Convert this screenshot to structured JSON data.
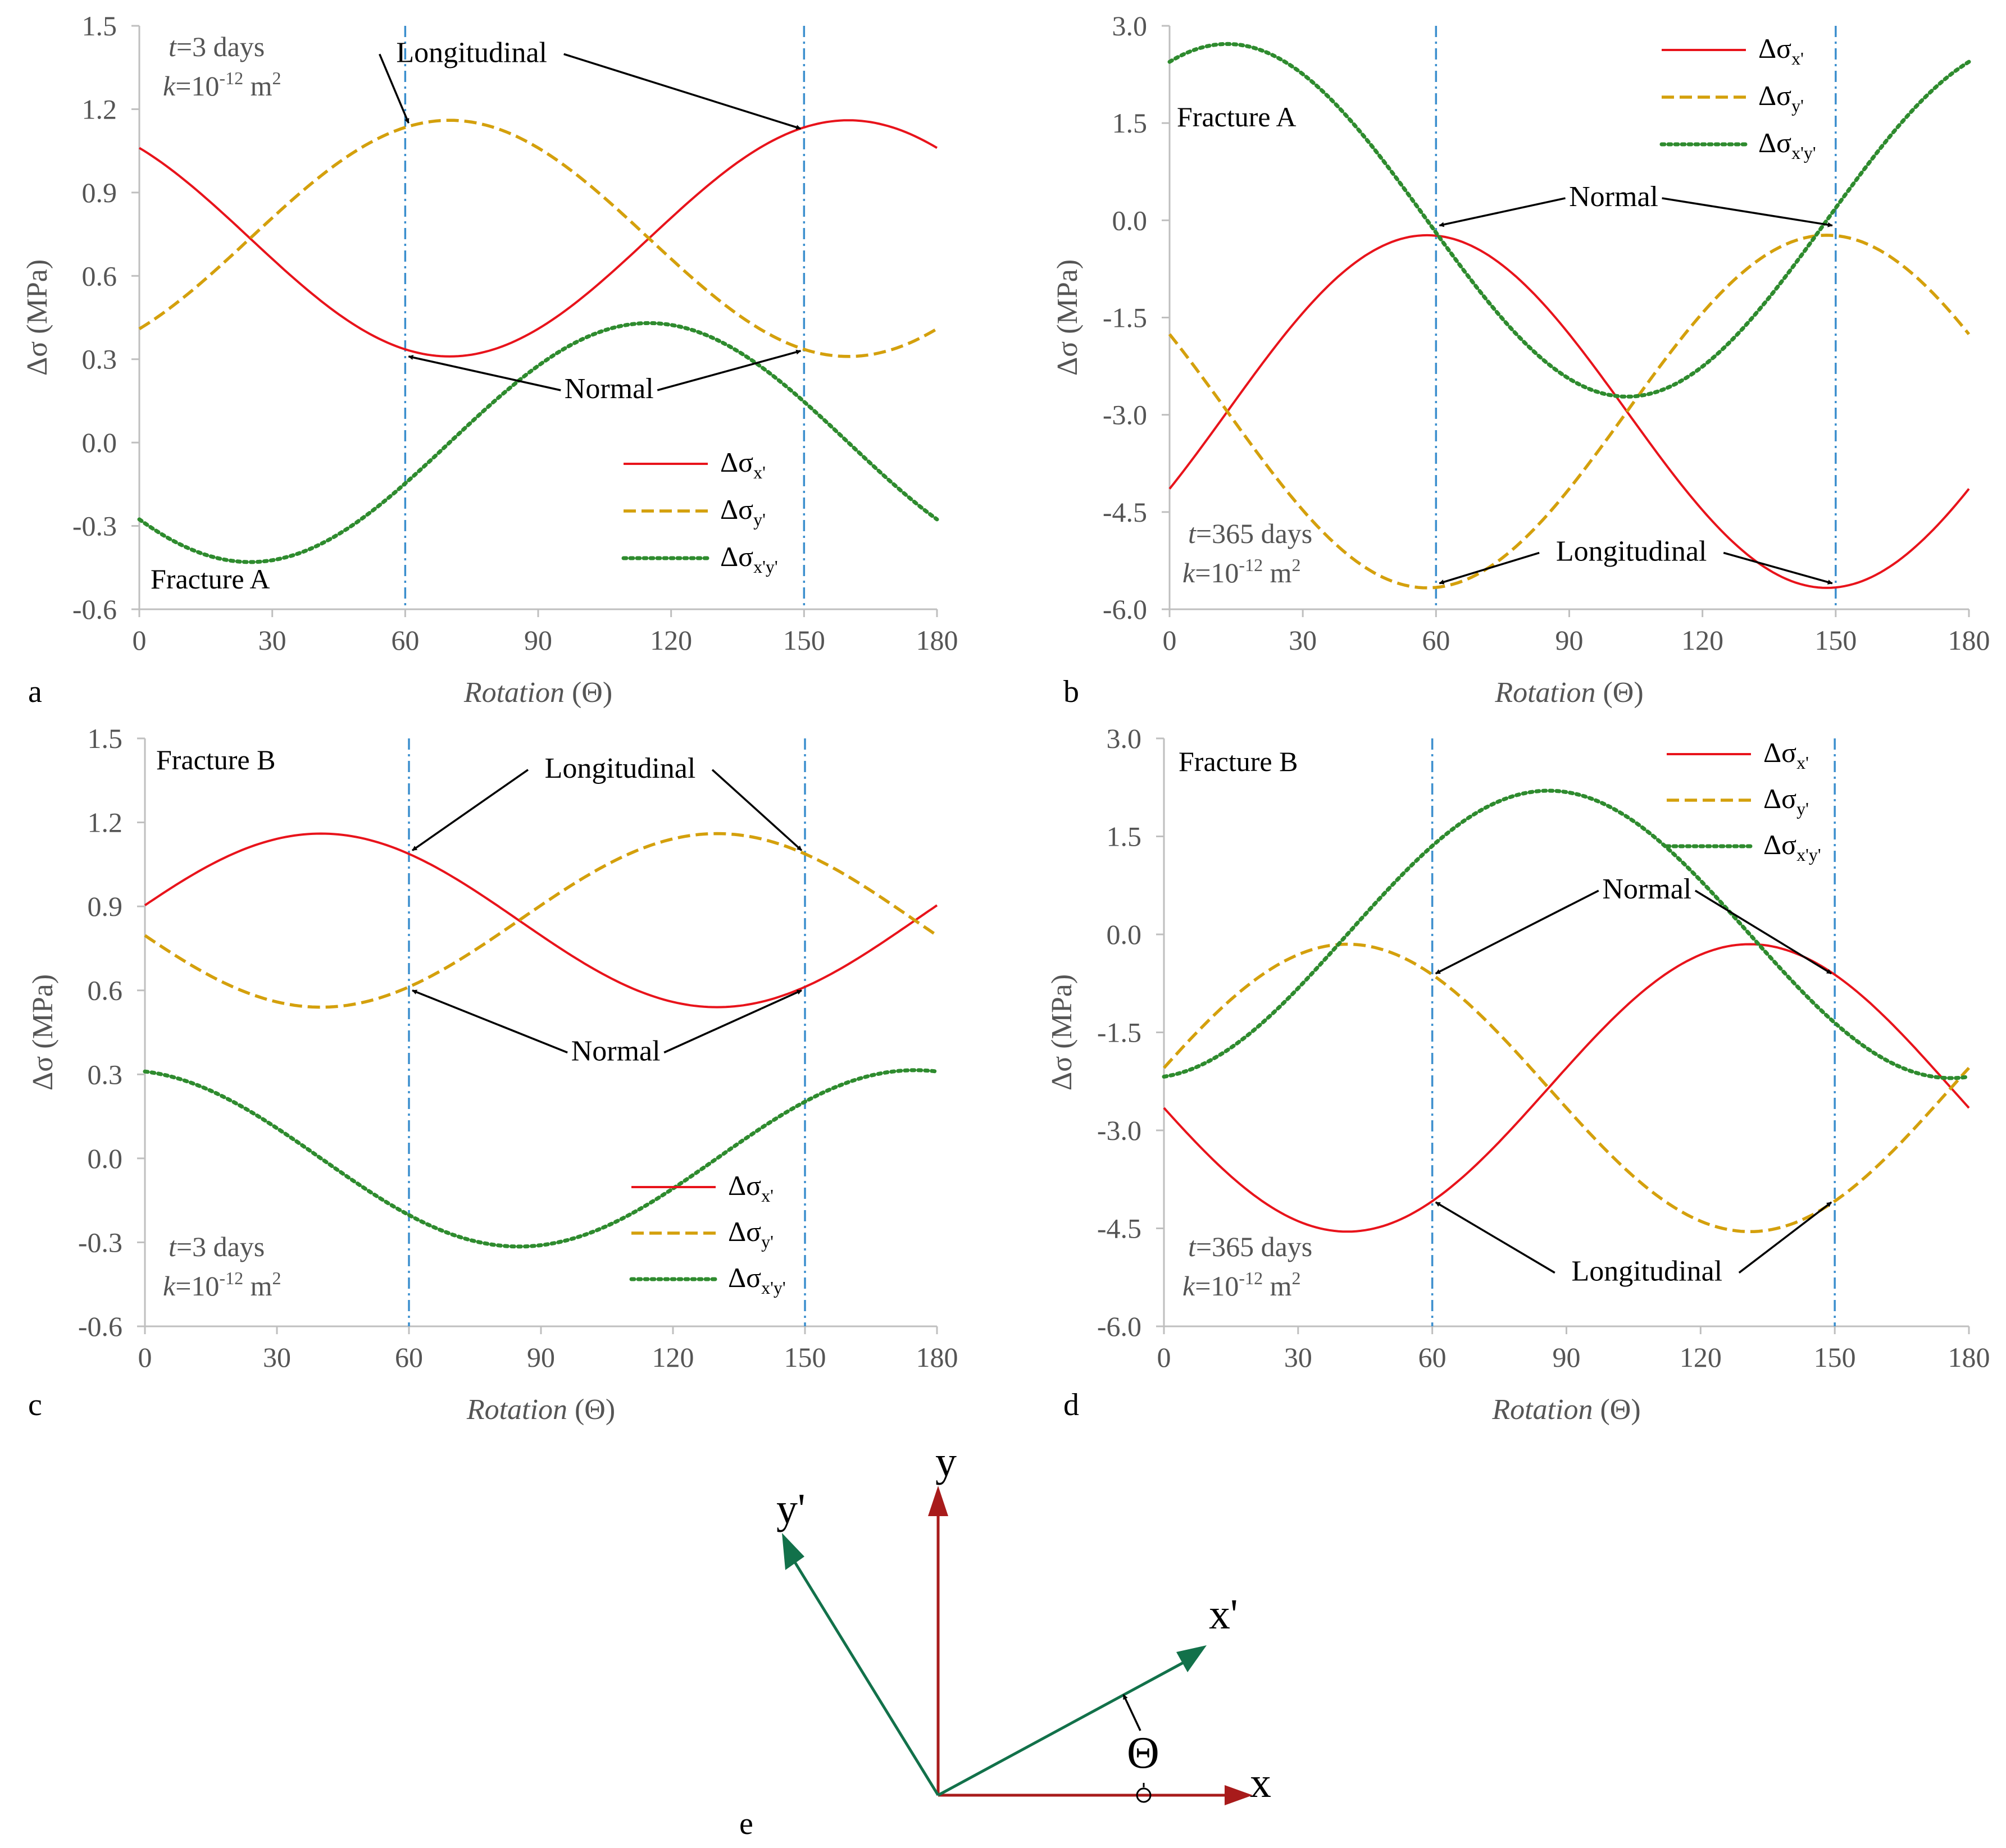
{
  "colors": {
    "sxx": "#e8131b",
    "syy": "#d4a00c",
    "sxy": "#2e8b2e",
    "vline": "#3c8fce",
    "axis": "#bfbfbf",
    "tick_text": "#555555",
    "label_text": "#555555",
    "arrow": "#000000",
    "diag_green": "#12714a",
    "diag_red": "#a81b1b"
  },
  "chart_data": [
    {
      "id": "a",
      "type": "line",
      "panel_label": "a",
      "xlabel_italic": "Rotation",
      "xlabel_rest": " (Θ)",
      "ylabel": "Δσ (MPa)",
      "xlim": [
        0,
        180
      ],
      "ylim": [
        -0.6,
        1.5
      ],
      "xticks": [
        "0",
        "30",
        "60",
        "90",
        "120",
        "150",
        "180"
      ],
      "yticks": [
        "-0.6",
        "-0.3",
        "0.0",
        "0.3",
        "0.6",
        "0.9",
        "1.2",
        "1.5"
      ],
      "vlines": [
        60,
        150
      ],
      "fracture_label": "Fracture A",
      "t_label": "=3 days",
      "k_label": "=10",
      "k_exp": "-12",
      "k_unit": " m",
      "k_sq": "2",
      "callouts": [
        {
          "text": "Longitudinal",
          "x": 75,
          "y": 1.37,
          "targets": [
            [
              60,
              1.15
            ],
            [
              150,
              1.13
            ]
          ]
        },
        {
          "text": "Normal",
          "x": 106,
          "y": 0.16,
          "targets": [
            [
              60,
              0.31
            ],
            [
              150,
              0.33
            ]
          ]
        }
      ],
      "legend": [
        "Δσ",
        "x'",
        "Δσ",
        "y'",
        "Δσ",
        "x'y'"
      ],
      "series": [
        {
          "name": "Δσx'",
          "style": "solid",
          "mean": 0.735,
          "amp": 0.425,
          "peak": 160
        },
        {
          "name": "Δσy'",
          "style": "dashed",
          "mean": 0.735,
          "amp": 0.425,
          "peak": 70
        },
        {
          "name": "Δσx'y'",
          "style": "dotted",
          "mean": 0.0,
          "amp": 0.43,
          "peak": 115
        }
      ]
    },
    {
      "id": "b",
      "type": "line",
      "panel_label": "b",
      "xlabel_italic": "Rotation",
      "xlabel_rest": " (Θ)",
      "ylabel": "Δσ (MPa)",
      "xlim": [
        0,
        180
      ],
      "ylim": [
        -6.0,
        3.0
      ],
      "xticks": [
        "0",
        "30",
        "60",
        "90",
        "120",
        "150",
        "180"
      ],
      "yticks": [
        "-6.0",
        "-4.5",
        "-3.0",
        "-1.5",
        "0.0",
        "1.5",
        "3.0"
      ],
      "vlines": [
        60,
        150
      ],
      "fracture_label": "Fracture A",
      "t_label": "=365 days",
      "k_label": "=10",
      "k_exp": "-12",
      "k_unit": " m",
      "k_sq": "2",
      "callouts": [
        {
          "text": "Normal",
          "x": 100,
          "y": 0.22,
          "targets": [
            [
              60,
              -0.08
            ],
            [
              150,
              -0.08
            ]
          ]
        },
        {
          "text": "Longitudinal",
          "x": 104,
          "y": -5.25,
          "targets": [
            [
              60,
              -5.6
            ],
            [
              150,
              -5.6
            ]
          ]
        }
      ],
      "legend": [
        "Δσ",
        "x'",
        "Δσ",
        "y'",
        "Δσ",
        "x'y'"
      ],
      "series": [
        {
          "name": "Δσx'",
          "style": "solid",
          "mean": -2.95,
          "amp": 2.72,
          "peak": 58
        },
        {
          "name": "Δσy'",
          "style": "dashed",
          "mean": -2.95,
          "amp": 2.72,
          "peak": 148
        },
        {
          "name": "Δσx'y'",
          "style": "dotted",
          "mean": 0.0,
          "amp": 2.72,
          "peak": 13
        }
      ]
    },
    {
      "id": "c",
      "type": "line",
      "panel_label": "c",
      "xlabel_italic": "Rotation",
      "xlabel_rest": " (Θ)",
      "ylabel": "Δσ (MPa)",
      "xlim": [
        0,
        180
      ],
      "ylim": [
        -0.6,
        1.5
      ],
      "xticks": [
        "0",
        "30",
        "60",
        "90",
        "120",
        "150",
        "180"
      ],
      "yticks": [
        "-0.6",
        "-0.3",
        "0.0",
        "0.3",
        "0.6",
        "0.9",
        "1.2",
        "1.5"
      ],
      "vlines": [
        60,
        150
      ],
      "fracture_label": "Fracture B",
      "t_label": "=3 days",
      "k_label": "=10",
      "k_exp": "-12",
      "k_unit": " m",
      "k_sq": "2",
      "callouts": [
        {
          "text": "Longitudinal",
          "x": 108,
          "y": 1.36,
          "targets": [
            [
              60,
              1.1
            ],
            [
              150,
              1.1
            ]
          ]
        },
        {
          "text": "Normal",
          "x": 107,
          "y": 0.35,
          "targets": [
            [
              60,
              0.6
            ],
            [
              150,
              0.6
            ]
          ]
        }
      ],
      "legend": [
        "Δσ",
        "x'",
        "Δσ",
        "y'",
        "Δσ",
        "x'y'"
      ],
      "series": [
        {
          "name": "Δσx'",
          "style": "solid",
          "mean": 0.85,
          "amp": 0.31,
          "peak": 40
        },
        {
          "name": "Δσy'",
          "style": "dashed",
          "mean": 0.85,
          "amp": 0.31,
          "peak": 130
        },
        {
          "name": "Δσx'y'",
          "style": "dotted",
          "mean": 0.0,
          "amp": 0.315,
          "peak": 175
        }
      ]
    },
    {
      "id": "d",
      "type": "line",
      "panel_label": "d",
      "xlabel_italic": "Rotation",
      "xlabel_rest": " (Θ)",
      "ylabel": "Δσ (MPa)",
      "xlim": [
        0,
        180
      ],
      "ylim": [
        -6.0,
        3.0
      ],
      "xticks": [
        "0",
        "30",
        "60",
        "90",
        "120",
        "150",
        "180"
      ],
      "yticks": [
        "-6.0",
        "-4.5",
        "-3.0",
        "-1.5",
        "0.0",
        "1.5",
        "3.0"
      ],
      "vlines": [
        60,
        150
      ],
      "fracture_label": "Fracture B",
      "t_label": "=365 days",
      "k_label": "=10",
      "k_exp": "-12",
      "k_unit": " m",
      "k_sq": "2",
      "callouts": [
        {
          "text": "Normal",
          "x": 108,
          "y": 0.55,
          "targets": [
            [
              60,
              -0.6
            ],
            [
              150,
              -0.6
            ]
          ]
        },
        {
          "text": "Longitudinal",
          "x": 108,
          "y": -5.3,
          "targets": [
            [
              60,
              -4.1
            ],
            [
              150,
              -4.1
            ]
          ]
        }
      ],
      "legend": [
        "Δσ",
        "x'",
        "Δσ",
        "y'",
        "Δσ",
        "x'y'"
      ],
      "series": [
        {
          "name": "Δσx'",
          "style": "solid",
          "mean": -2.35,
          "amp": 2.2,
          "peak": 131
        },
        {
          "name": "Δσy'",
          "style": "dashed",
          "mean": -2.35,
          "amp": 2.2,
          "peak": 41
        },
        {
          "name": "Δσx'y'",
          "style": "dotted",
          "mean": 0.0,
          "amp": 2.2,
          "peak": 86
        }
      ]
    }
  ],
  "diagram": {
    "label": "e",
    "x": "x",
    "y": "y",
    "xp": "x'",
    "yp": "y'",
    "theta": "Θ"
  }
}
